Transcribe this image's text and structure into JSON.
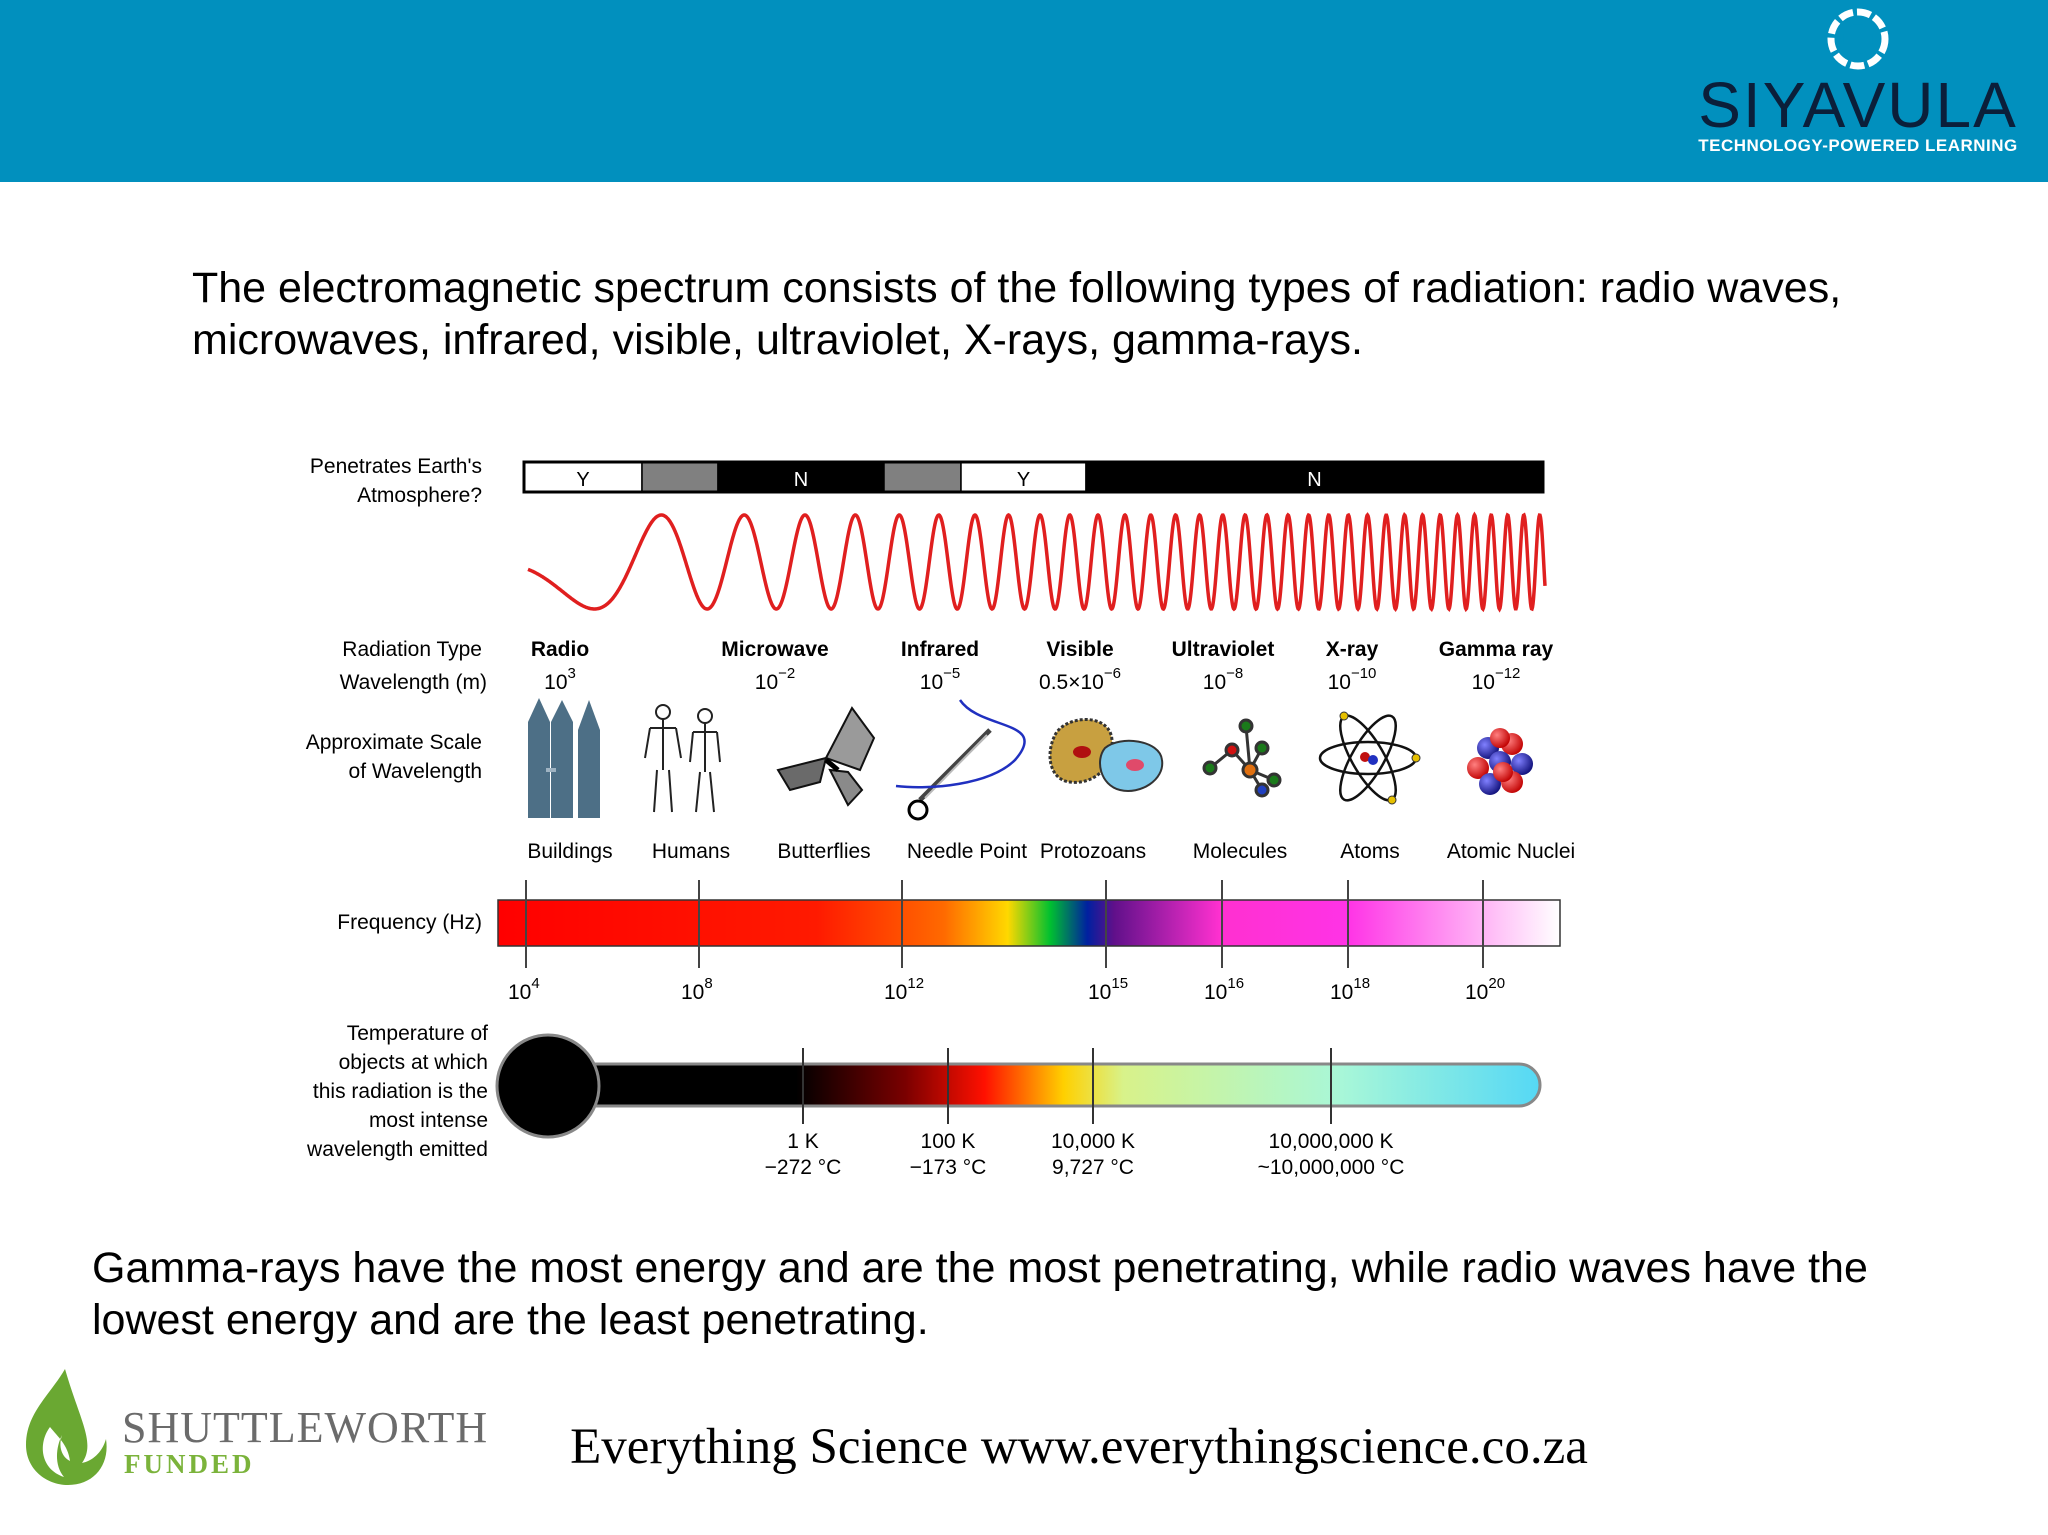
{
  "header": {
    "brand": "SIYAVULA",
    "tagline": "TECHNOLOGY-POWERED LEARNING",
    "color": "#0190be"
  },
  "intro_text": "The electromagnetic spectrum consists of the following types of radiation: radio waves, microwaves, infrared, visible, ultraviolet, X-rays, gamma-rays.",
  "diagram": {
    "row_labels": {
      "penetrates_1": "Penetrates Earth's",
      "penetrates_2": "Atmosphere?",
      "radiation_type": "Radiation Type",
      "wavelength": "Wavelength (m)",
      "scale_1": "Approximate Scale",
      "scale_2": "of Wavelength",
      "frequency": "Frequency (Hz)",
      "temp_1": "Temperature of",
      "temp_2": "objects at which",
      "temp_3": "this radiation is the",
      "temp_4": "most intense",
      "temp_5": "wavelength emitted"
    },
    "atmosphere": [
      {
        "label": "Y",
        "fill": "#ffffff",
        "text": "#000000"
      },
      {
        "label": "",
        "fill": "#808080",
        "text": "#ffffff"
      },
      {
        "label": "N",
        "fill": "#000000",
        "text": "#ffffff"
      },
      {
        "label": "",
        "fill": "#808080",
        "text": "#ffffff"
      },
      {
        "label": "Y",
        "fill": "#ffffff",
        "text": "#000000"
      },
      {
        "label": "N",
        "fill": "#000000",
        "text": "#ffffff"
      }
    ],
    "radiation_types": [
      {
        "name": "Radio",
        "base": "10",
        "exp": "3"
      },
      {
        "name": "Microwave",
        "base": "10",
        "exp": "−2"
      },
      {
        "name": "Infrared",
        "base": "10",
        "exp": "−5"
      },
      {
        "name": "Visible",
        "base": "0.5×10",
        "exp": "−6"
      },
      {
        "name": "Ultraviolet",
        "base": "10",
        "exp": "−8"
      },
      {
        "name": "X-ray",
        "base": "10",
        "exp": "−10"
      },
      {
        "name": "Gamma ray",
        "base": "10",
        "exp": "−12"
      }
    ],
    "scale_objects": [
      {
        "label": "Buildings",
        "icon": "buildings-icon"
      },
      {
        "label": "Humans",
        "icon": "humans-icon"
      },
      {
        "label": "Butterflies",
        "icon": "butterfly-icon"
      },
      {
        "label": "Needle Point",
        "icon": "needle-icon"
      },
      {
        "label": "Protozoans",
        "icon": "protozoan-icon"
      },
      {
        "label": "Molecules",
        "icon": "molecule-icon"
      },
      {
        "label": "Atoms",
        "icon": "atom-icon"
      },
      {
        "label": "Atomic Nuclei",
        "icon": "nucleus-icon"
      }
    ],
    "frequency_ticks": [
      {
        "base": "10",
        "exp": "4"
      },
      {
        "base": "10",
        "exp": "8"
      },
      {
        "base": "10",
        "exp": "12"
      },
      {
        "base": "10",
        "exp": "15"
      },
      {
        "base": "10",
        "exp": "16"
      },
      {
        "base": "10",
        "exp": "18"
      },
      {
        "base": "10",
        "exp": "20"
      }
    ],
    "temperature_ticks": [
      {
        "kelvin": "1 K",
        "celsius": "−272 °C"
      },
      {
        "kelvin": "100 K",
        "celsius": "−173 °C"
      },
      {
        "kelvin": "10,000 K",
        "celsius": "9,727 °C"
      },
      {
        "kelvin": "10,000,000 K",
        "celsius": "~10,000,000 °C"
      }
    ],
    "wave_color": "#e01f1f"
  },
  "outro_text": "Gamma-rays have the most energy and are the most penetrating, while radio waves have the lowest energy and are the least penetrating.",
  "footer": {
    "funder_name": "SHUTTLEWORTH",
    "funder_sub": "FUNDED",
    "site": "Everything Science www.everythingscience.co.za"
  }
}
